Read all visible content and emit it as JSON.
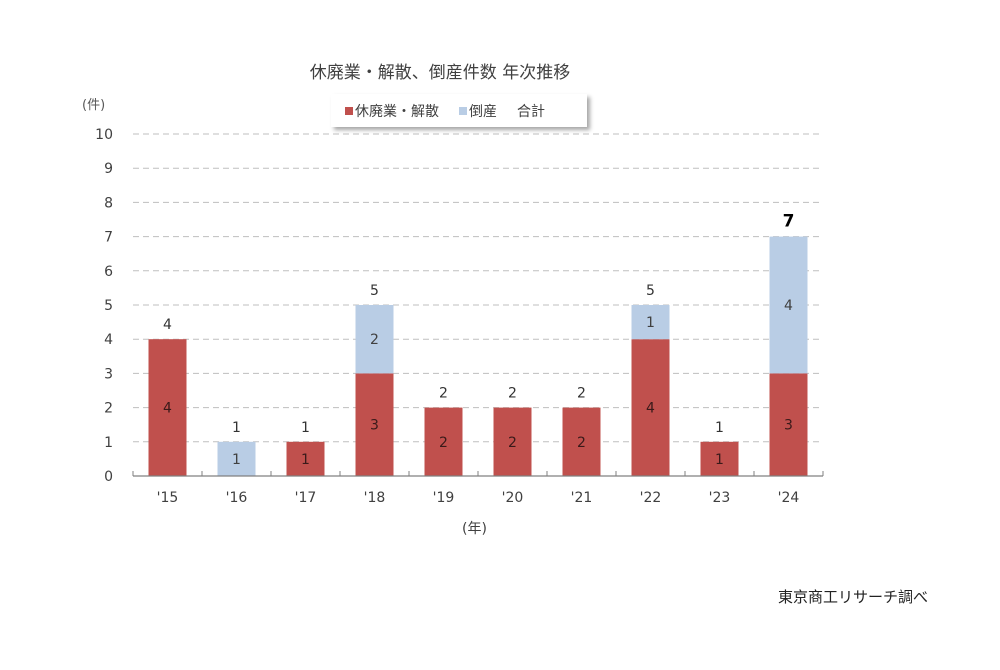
{
  "chart_data": {
    "type": "bar",
    "stacked": true,
    "title": "休廃業・解散、倒産件数 年次推移",
    "xlabel": "(年)",
    "ylabel": "(件)",
    "ylim": [
      0,
      10
    ],
    "yticks": [
      0,
      1,
      2,
      3,
      4,
      5,
      6,
      7,
      8,
      9,
      10
    ],
    "grid": "horizontal dashed",
    "legend_position": "top",
    "categories": [
      "'15",
      "'16",
      "'17",
      "'18",
      "'19",
      "'20",
      "'21",
      "'22",
      "'23",
      "'24"
    ],
    "series": [
      {
        "name": "休廃業・解散",
        "color": "#c0504d",
        "values": [
          4,
          0,
          1,
          3,
          2,
          2,
          2,
          4,
          1,
          3
        ]
      },
      {
        "name": "倒産",
        "color": "#b9cde5",
        "values": [
          0,
          1,
          0,
          2,
          0,
          0,
          0,
          1,
          0,
          4
        ]
      },
      {
        "name": "合計",
        "color": "none",
        "values": [
          4,
          1,
          1,
          5,
          2,
          2,
          2,
          5,
          1,
          7
        ]
      }
    ],
    "source": "東京商工リサーチ調べ"
  },
  "labels": {
    "title": "休廃業・解散、倒産件数 年次推移",
    "y_unit": "(件)",
    "x_unit": "(年)",
    "legend": [
      "休廃業・解散",
      "倒産",
      "合計"
    ],
    "source": "東京商工リサーチ調べ"
  }
}
